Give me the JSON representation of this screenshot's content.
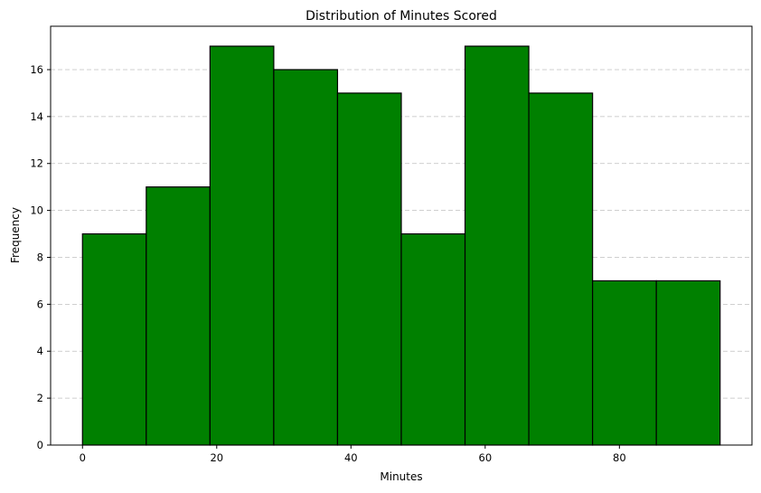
{
  "chart_data": {
    "type": "histogram",
    "title": "Distribution of Minutes Scored",
    "xlabel": "Minutes",
    "ylabel": "Frequency",
    "bin_edges": [
      0,
      9.5,
      19,
      28.5,
      38,
      47.5,
      57,
      66.5,
      76,
      85.5,
      95
    ],
    "values": [
      9,
      11,
      17,
      16,
      15,
      9,
      17,
      15,
      7,
      7
    ],
    "xlim": [
      -4.75,
      99.75
    ],
    "ylim": [
      0,
      17.85
    ],
    "xticks": [
      0,
      20,
      40,
      60,
      80
    ],
    "yticks": [
      0,
      2,
      4,
      6,
      8,
      10,
      12,
      14,
      16
    ],
    "grid": "y-axis dashed",
    "bar_color": "#008000",
    "edge_color": "#000000"
  }
}
